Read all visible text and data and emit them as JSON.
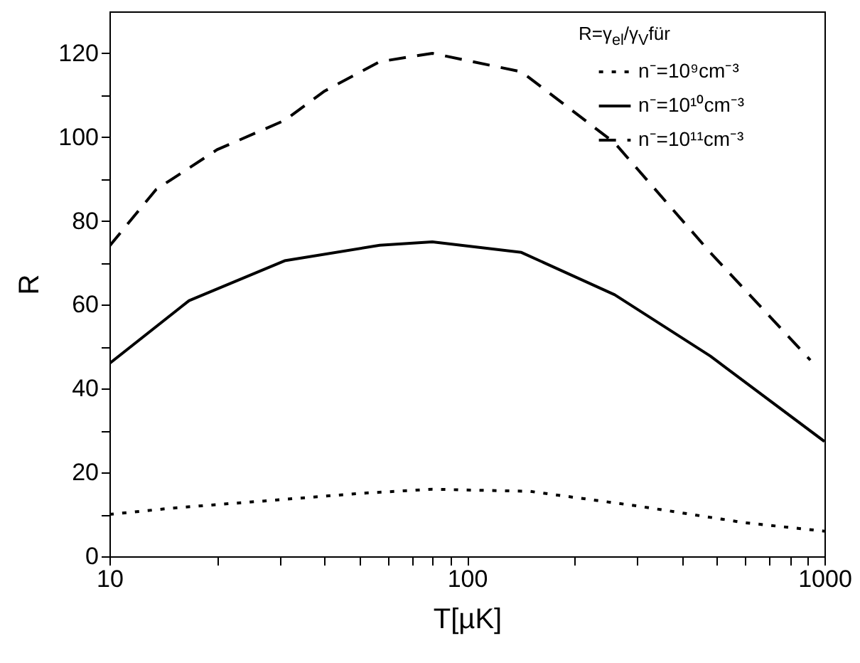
{
  "chart_data": {
    "type": "line",
    "xlabel": "T[µK]",
    "ylabel": "R",
    "legend_title": "R=γ$_{el}$/γ$_{V}$für",
    "log": "x",
    "grid": false,
    "legend": "top right",
    "marker": "none",
    "xlim": [
      10,
      1000
    ],
    "xticks": [
      10,
      {
        "value": 20,
        "label": null
      },
      {
        "value": 30,
        "label": null
      },
      {
        "value": 40,
        "label": null
      },
      {
        "value": 50,
        "label": null
      },
      {
        "value": 60,
        "label": null
      },
      {
        "value": 70,
        "label": null
      },
      {
        "value": 80,
        "label": null
      },
      {
        "value": 90,
        "label": null
      },
      100,
      {
        "value": 200,
        "label": null
      },
      {
        "value": 300,
        "label": null
      },
      {
        "value": 400,
        "label": null
      },
      {
        "value": 500,
        "label": null
      },
      {
        "value": 600,
        "label": null
      },
      {
        "value": 700,
        "label": null
      },
      {
        "value": 800,
        "label": null
      },
      {
        "value": 900,
        "label": null
      },
      1000
    ],
    "ylim": [
      0,
      130
    ],
    "yticks": [
      0,
      {
        "value": 10,
        "label": null
      },
      20,
      {
        "value": 30,
        "label": null
      },
      40,
      {
        "value": 50,
        "label": null
      },
      60,
      {
        "value": 70,
        "label": null
      },
      80,
      {
        "value": 90,
        "label": null
      },
      100,
      {
        "value": 110,
        "label": null
      },
      120
    ],
    "series": [
      {
        "name": "n⁻=10⁹cm⁻³",
        "color": "#000000",
        "line_style": "dotted",
        "x": [
          10,
          15,
          30,
          50,
          80,
          150,
          300,
          600,
          1000
        ],
        "values": [
          10,
          11.5,
          13.5,
          15,
          16,
          15.5,
          12,
          8,
          6
        ]
      },
      {
        "name": "n⁻=10¹⁰cm⁻³",
        "color": "#000000",
        "line_style": "solid",
        "x": [
          10,
          16.7,
          30.9,
          57,
          80,
          142,
          259,
          479,
          1000
        ],
        "values": [
          46,
          61,
          70.5,
          74.2,
          75,
          72.5,
          62.4,
          47.8,
          27.4
        ]
      },
      {
        "name": "n⁻=10¹¹cm⁻³",
        "color": "#000000",
        "line_style": "dashed",
        "x": [
          10,
          13.5,
          20,
          30.9,
          40,
          57,
          80,
          142,
          259,
          479,
          913
        ],
        "values": [
          74,
          87.5,
          97,
          104,
          111,
          118,
          120,
          115.6,
          98.6,
          72.5,
          46.8
        ]
      }
    ]
  }
}
